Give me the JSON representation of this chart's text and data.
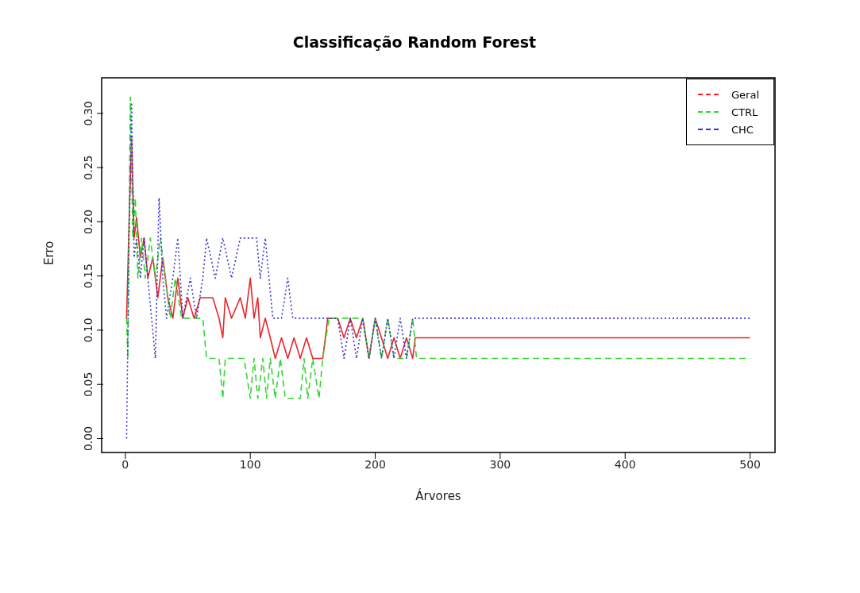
{
  "chart_data": {
    "type": "line",
    "title": "Classificação Random Forest",
    "xlabel": "Árvores",
    "ylabel": "Erro",
    "xlim": [
      -18.96,
      519.96
    ],
    "ylim": [
      -0.0128,
      0.3328
    ],
    "xticks": [
      0,
      100,
      200,
      300,
      400,
      500
    ],
    "yticks": [
      {
        "value": 0,
        "label": "0.00"
      },
      {
        "value": 0.05,
        "label": "0.05"
      },
      {
        "value": 0.1,
        "label": "0.10"
      },
      {
        "value": 0.15,
        "label": "0.15"
      },
      {
        "value": 0.2,
        "label": "0.20"
      },
      {
        "value": 0.25,
        "label": "0.25"
      },
      {
        "value": 0.3,
        "label": "0.30"
      }
    ],
    "legend": "top right",
    "marker": "none",
    "series": [
      {
        "name": "Geral",
        "color": "#e8262a",
        "line_style": "solid",
        "x": [
          1,
          3,
          5,
          7,
          9,
          12,
          15,
          18,
          22,
          26,
          30,
          34,
          38,
          42,
          46,
          50,
          55,
          60,
          70,
          75,
          78,
          80,
          85,
          92,
          96,
          100,
          103,
          106,
          108,
          112,
          116,
          120,
          125,
          130,
          135,
          140,
          145,
          150,
          158,
          162,
          170,
          175,
          180,
          185,
          190,
          195,
          200,
          205,
          210,
          215,
          220,
          225,
          230,
          232,
          500
        ],
        "values": [
          0.111,
          0.2,
          0.278,
          0.185,
          0.204,
          0.167,
          0.185,
          0.148,
          0.167,
          0.13,
          0.167,
          0.13,
          0.111,
          0.148,
          0.111,
          0.13,
          0.111,
          0.13,
          0.13,
          0.111,
          0.093,
          0.13,
          0.111,
          0.13,
          0.111,
          0.148,
          0.111,
          0.13,
          0.093,
          0.111,
          0.093,
          0.074,
          0.093,
          0.074,
          0.093,
          0.074,
          0.093,
          0.074,
          0.074,
          0.111,
          0.111,
          0.093,
          0.111,
          0.093,
          0.111,
          0.074,
          0.111,
          0.093,
          0.074,
          0.093,
          0.074,
          0.093,
          0.074,
          0.093,
          0.093
        ]
      },
      {
        "name": "CTRL",
        "color": "#33d633",
        "line_style": "dashed",
        "x": [
          1,
          2,
          4,
          6,
          8,
          10,
          13,
          16,
          20,
          24,
          28,
          32,
          36,
          40,
          45,
          55,
          62,
          65,
          75,
          78,
          80,
          95,
          100,
          103,
          106,
          110,
          113,
          116,
          120,
          124,
          128,
          140,
          143,
          146,
          150,
          155,
          158,
          163,
          190,
          195,
          200,
          205,
          210,
          215,
          225,
          230,
          233,
          500
        ],
        "values": [
          0.111,
          0.074,
          0.315,
          0.185,
          0.222,
          0.148,
          0.185,
          0.148,
          0.185,
          0.148,
          0.185,
          0.148,
          0.111,
          0.148,
          0.111,
          0.111,
          0.111,
          0.074,
          0.074,
          0.037,
          0.074,
          0.074,
          0.037,
          0.074,
          0.037,
          0.074,
          0.037,
          0.074,
          0.037,
          0.074,
          0.037,
          0.037,
          0.074,
          0.037,
          0.074,
          0.037,
          0.074,
          0.111,
          0.111,
          0.074,
          0.111,
          0.074,
          0.111,
          0.074,
          0.074,
          0.111,
          0.074,
          0.074
        ]
      },
      {
        "name": "CHC",
        "color": "#3333cc",
        "line_style": "dotted",
        "x": [
          1,
          3,
          5,
          7,
          9,
          12,
          15,
          18,
          21,
          24,
          27,
          30,
          33,
          38,
          42,
          46,
          52,
          57,
          62,
          65,
          72,
          78,
          85,
          92,
          105,
          108,
          112,
          115,
          118,
          125,
          130,
          134,
          170,
          175,
          180,
          185,
          190,
          195,
          200,
          205,
          210,
          215,
          220,
          225,
          230,
          500
        ],
        "values": [
          0,
          0.185,
          0.31,
          0.167,
          0.185,
          0.148,
          0.185,
          0.148,
          0.111,
          0.074,
          0.222,
          0.148,
          0.111,
          0.148,
          0.185,
          0.111,
          0.148,
          0.111,
          0.148,
          0.185,
          0.148,
          0.185,
          0.148,
          0.185,
          0.185,
          0.148,
          0.185,
          0.148,
          0.111,
          0.111,
          0.148,
          0.111,
          0.111,
          0.074,
          0.111,
          0.074,
          0.111,
          0.074,
          0.111,
          0.074,
          0.111,
          0.074,
          0.111,
          0.074,
          0.111,
          0.111
        ]
      }
    ]
  }
}
